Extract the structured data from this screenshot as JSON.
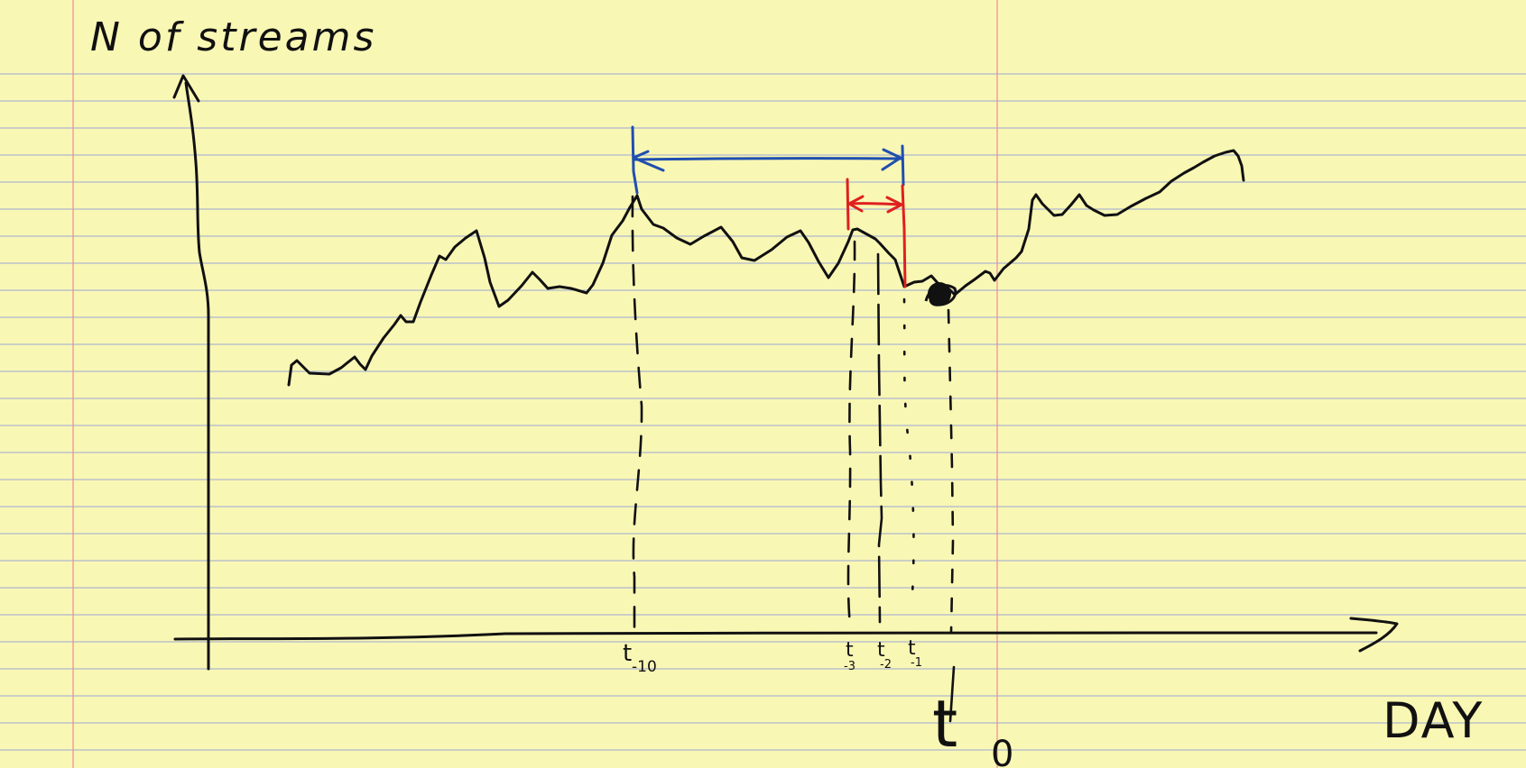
{
  "labels": {
    "y_axis": "N of streams",
    "x_axis": "DAY",
    "t_minus_10": "t",
    "t_minus_10_sub": "-10",
    "t_minus_3": "t",
    "t_minus_3_sub": "-3",
    "t_minus_2": "t",
    "t_minus_2_sub": "-2",
    "t_minus_1": "t",
    "t_minus_1_sub": "-1",
    "t_zero": "t",
    "t_zero_sub": "0"
  },
  "colors": {
    "paper": "#f9f7b4",
    "rule_line": "#9aa7d6",
    "margin_line": "#f08a9a",
    "ink": "#111111",
    "blue_bracket": "#1f4fb0",
    "red_bracket": "#e02020"
  }
}
